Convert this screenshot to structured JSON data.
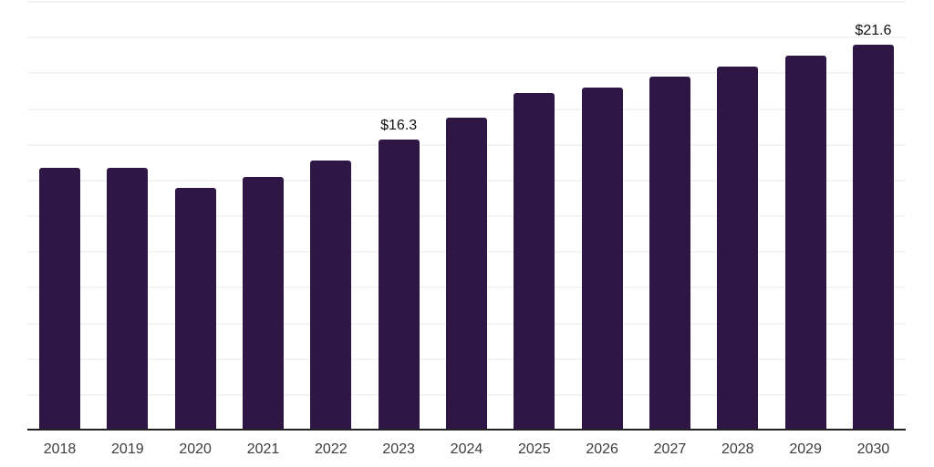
{
  "chart_data": {
    "type": "bar",
    "title": "",
    "xlabel": "",
    "ylabel": "",
    "categories": [
      "2018",
      "2019",
      "2020",
      "2021",
      "2022",
      "2023",
      "2024",
      "2025",
      "2026",
      "2027",
      "2028",
      "2029",
      "2030"
    ],
    "values": [
      14.7,
      14.7,
      13.6,
      14.2,
      15.1,
      16.3,
      17.5,
      18.9,
      19.2,
      19.8,
      20.4,
      21.0,
      21.6
    ],
    "data_labels": {
      "2023": "$16.3",
      "2030": "$21.6"
    },
    "ylim": [
      0,
      24
    ],
    "gridline_step": 2,
    "grid": true,
    "legend": false,
    "colors": {
      "bar": "#2e1745",
      "axis_line": "#222222",
      "gridline": "#f4f4f4",
      "data_label": "#111111",
      "tick_label": "#3c3c3c",
      "background": "#ffffff"
    }
  }
}
